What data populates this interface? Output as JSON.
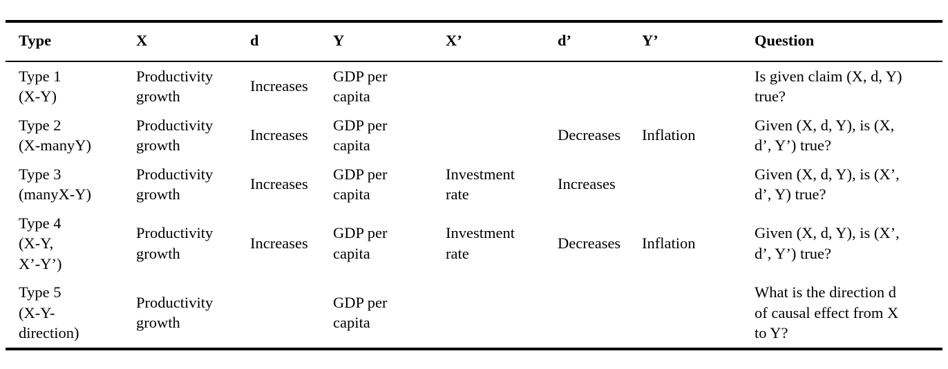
{
  "page": {
    "background_color": "#ffffff",
    "text_color": "#000000",
    "rule_color": "#000000"
  },
  "table": {
    "headers": {
      "type": "Type",
      "x": "X",
      "d": "d",
      "y": "Y",
      "xp": "X’",
      "dp": "d’",
      "yp": "Y’",
      "question": "Question"
    },
    "rows": [
      {
        "cells": {
          "type": "Type 1\n(X-Y)",
          "x": "Productivity\ngrowth",
          "d": "Increases",
          "y": "GDP per\ncapita",
          "xp": "",
          "dp": "",
          "yp": "",
          "question": "Is given claim (X, d, Y)\ntrue?"
        }
      },
      {
        "cells": {
          "type": "Type 2\n(X-manyY)",
          "x": "Productivity\ngrowth",
          "d": "Increases",
          "y": "GDP per\ncapita",
          "xp": "",
          "dp": "Decreases",
          "yp": "Inflation",
          "question": "Given (X, d, Y), is (X,\nd’, Y’) true?"
        }
      },
      {
        "cells": {
          "type": "Type 3\n(manyX-Y)",
          "x": "Productivity\ngrowth",
          "d": "Increases",
          "y": "GDP per\ncapita",
          "xp": "Investment\nrate",
          "dp": "Increases",
          "yp": "",
          "question": "Given (X, d, Y), is (X’,\nd’, Y) true?"
        }
      },
      {
        "cells": {
          "type": "Type 4\n(X-Y,\nX’-Y’)",
          "x": "Productivity\ngrowth",
          "d": "Increases",
          "y": "GDP per\ncapita",
          "xp": "Investment\nrate",
          "dp": "Decreases",
          "yp": "Inflation",
          "question": "Given (X, d, Y), is (X’,\nd’, Y’) true?"
        }
      },
      {
        "cells": {
          "type": "Type 5\n(X-Y-\ndirection)",
          "x": "Productivity\ngrowth",
          "d": "",
          "y": "GDP per\ncapita",
          "xp": "",
          "dp": "",
          "yp": "",
          "question": "What is the direction d\nof causal effect from X\nto Y?"
        }
      }
    ]
  }
}
